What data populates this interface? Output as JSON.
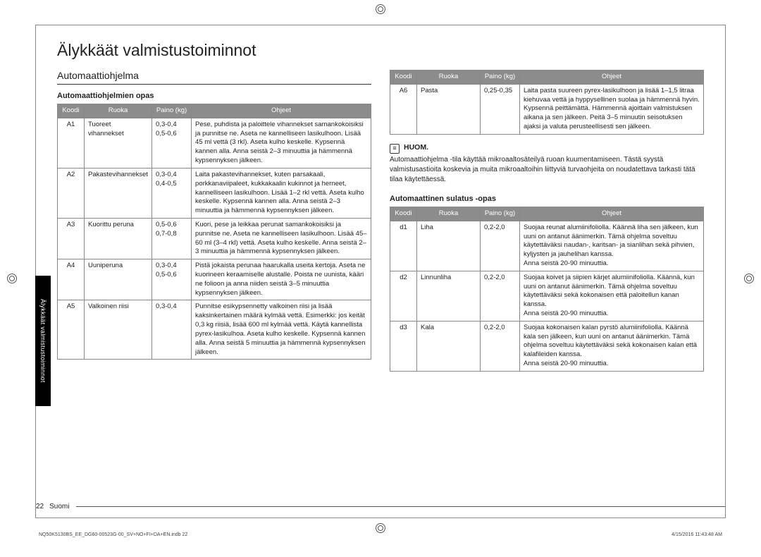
{
  "title": "Älykkäät valmistustoiminnot",
  "section": "Automaattiohjelma",
  "guide1_title": "Automaattiohjelmien opas",
  "th": {
    "code": "Koodi",
    "food": "Ruoka",
    "weight": "Paino (kg)",
    "instr": "Ohjeet"
  },
  "t1": [
    {
      "code": "A1",
      "food": "Tuoreet vihannekset",
      "weight": "0,3-0,4\n0,5-0,6",
      "instr": "Pese, puhdista ja paloittele vihannekset samankokoisiksi ja punnitse ne. Aseta ne kannelliseen lasikulhoon. Lisää 45 ml vettä (3 rkl). Aseta kulho keskelle. Kypsennä kannen alla. Anna seistä 2–3 minuuttia ja hämmennä kypsennyksen jälkeen."
    },
    {
      "code": "A2",
      "food": "Pakastevihannekset",
      "weight": "0,3-0,4\n0,4-0,5",
      "instr": "Laita pakastevihannekset, kuten parsakaali, porkkanaviipaleet, kukkakaalin kukinnot ja herneet, kannelliseen lasikulhoon. Lisää 1–2 rkl vettä. Aseta kulho keskelle. Kypsennä kannen alla. Anna seistä 2–3 minuuttia ja hämmennä kypsennyksen jälkeen."
    },
    {
      "code": "A3",
      "food": "Kuorittu peruna",
      "weight": "0,5-0,6\n0,7-0,8",
      "instr": "Kuori, pese ja leikkaa perunat samankokoisiksi ja punnitse ne. Aseta ne kannelliseen lasikulhoon. Lisää 45–60 ml (3–4 rkl) vettä. Aseta kulho keskelle. Anna seistä 2–3 minuuttia ja hämmennä kypsennyksen jälkeen."
    },
    {
      "code": "A4",
      "food": "Uuniperuna",
      "weight": "0,3-0,4\n0,5-0,6",
      "instr": "Pistä jokaista perunaa haarukalla useita kertoja. Aseta ne kuorineen keraamiselle alustalle. Poista ne uunista, kääri ne folioon ja anna niiden seistä 3–5 minuuttia kypsennyksen jälkeen."
    },
    {
      "code": "A5",
      "food": "Valkoinen riisi",
      "weight": "0,3-0,4",
      "instr": "Punnitse esikypsennetty valkoinen riisi ja lisää kaksinkertainen määrä kylmää vettä. Esimerkki: jos keität 0,3 kg riisiä, lisää 600 ml kylmää vettä. Käytä kannellista pyrex-lasikulhoa. Aseta kulho keskelle. Kypsennä kannen alla. Anna seistä 5 minuuttia ja hämmennä kypsennyksen jälkeen."
    }
  ],
  "t1b": [
    {
      "code": "A6",
      "food": "Pasta",
      "weight": "0,25-0,35",
      "instr": "Laita pasta suureen pyrex-lasikulhoon ja lisää 1–1,5 litraa kiehuvaa vettä ja hyppysellinen suolaa ja hämmennä hyvin. Kypsennä peittämättä. Hämmennä ajoittain valmistuksen aikana ja sen jälkeen. Peitä 3–5 minuutin seisotuksen ajaksi ja valuta perusteellisesti sen jälkeen."
    }
  ],
  "note_label": "HUOM.",
  "note_text": "Automaattiohjelma -tila käyttää mikroaaltosäteilyä ruoan kuumentamiseen. Tästä syystä valmistusastioita koskevia ja muita mikroaaltoihin liittyviä turvaohjeita\non noudatettava tarkasti tätä tilaa käytettäessä.",
  "guide2_title": "Automaattinen sulatus -opas",
  "t2": [
    {
      "code": "d1",
      "food": "Liha",
      "weight": "0,2-2,0",
      "instr": "Suojaa reunat alumiinifoliolla. Käännä liha sen jälkeen, kun uuni on antanut äänimerkin. Tämä ohjelma soveltuu käytettäväksi naudan-, karitsan- ja sianlihan sekä pihvien, kyljysten ja jauhelihan kanssa.\nAnna seistä 20-90 minuuttia."
    },
    {
      "code": "d2",
      "food": "Linnunliha",
      "weight": "0,2-2,0",
      "instr": "Suojaa koivet ja siipien kärjet alumiinifoliolla. Käännä, kun uuni on antanut äänimerkin. Tämä ohjelma soveltuu käytettäväksi sekä kokonaisen että paloitellun kanan kanssa.\nAnna seistä 20-90 minuuttia."
    },
    {
      "code": "d3",
      "food": "Kala",
      "weight": "0,2-2,0",
      "instr": "Suojaa kokonaisen kalan pyrstö alumiinifoliolla. Käännä kala sen jälkeen, kun uuni on antanut äänimerkin. Tämä ohjelma soveltuu käytettäväksi sekä kokonaisen kalan että kalafileiden kanssa.\nAnna seistä 20-90 minuuttia."
    }
  ],
  "side_tab": "Älykkäät valmistustoiminnot",
  "page_number": "22",
  "page_lang": "Suomi",
  "imprint_left": "NQ50K5130BS_EE_DG60-00523G-00_SV+NO+FI+DA+EN.indb   22",
  "imprint_right": "4/15/2016   11:43:48 AM"
}
